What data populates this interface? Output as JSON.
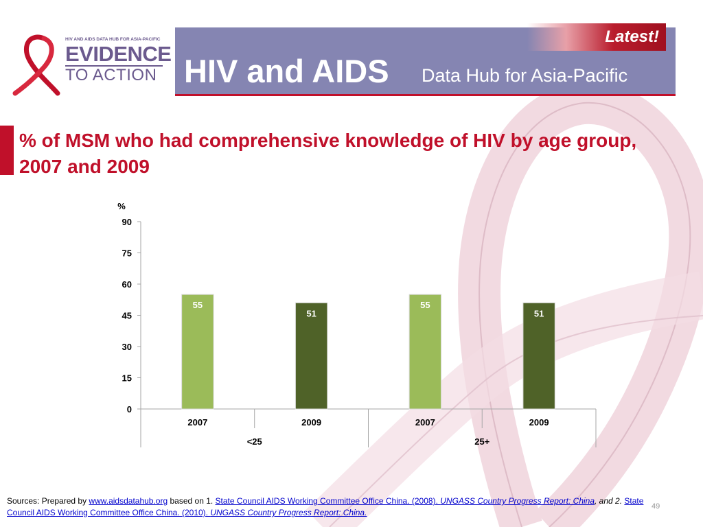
{
  "header": {
    "logo_small": "HIV AND AIDS DATA HUB FOR ASIA-PACIFIC",
    "logo_big": "EVIDENCE",
    "logo_sub": "TO ACTION",
    "title_main": "HIV and AIDS",
    "title_sub": "Data Hub for Asia-Pacific",
    "latest_badge": "Latest!"
  },
  "slide": {
    "title": "% of MSM who had comprehensive knowledge of HIV by age group, 2007 and 2009",
    "page_number": "49"
  },
  "chart_data": {
    "type": "bar",
    "ylabel": "%",
    "ylim": [
      0,
      90
    ],
    "yticks": [
      0,
      15,
      30,
      45,
      60,
      75,
      90
    ],
    "groups": [
      "<25",
      "25+"
    ],
    "categories": [
      "2007",
      "2009",
      "2007",
      "2009"
    ],
    "group_of_category": [
      0,
      0,
      1,
      1
    ],
    "values": [
      55,
      51,
      55,
      51
    ],
    "data_labels": [
      "55",
      "51",
      "55",
      "51"
    ],
    "colors": [
      "#9bbb59",
      "#4f6228",
      "#9bbb59",
      "#4f6228"
    ],
    "grid": false,
    "legend": "none"
  },
  "footer": {
    "prefix": "Sources: Prepared by ",
    "link1": "www.aidsdatahub.org",
    "mid1": "  based on  1. ",
    "link2": "State Council AIDS Working Committee Office China. (2008). ",
    "link2_italic": "UNGASS Country Progress Report: China",
    "mid2": ", and 2.  ",
    "link3": "State Council AIDS Working Committee Office China. (2010). ",
    "link3_italic": "UNGASS Country Progress Report: China."
  },
  "colors": {
    "header_band": "#8585b2",
    "accent_red": "#c0102a",
    "logo_purple": "#6b5a8e"
  }
}
